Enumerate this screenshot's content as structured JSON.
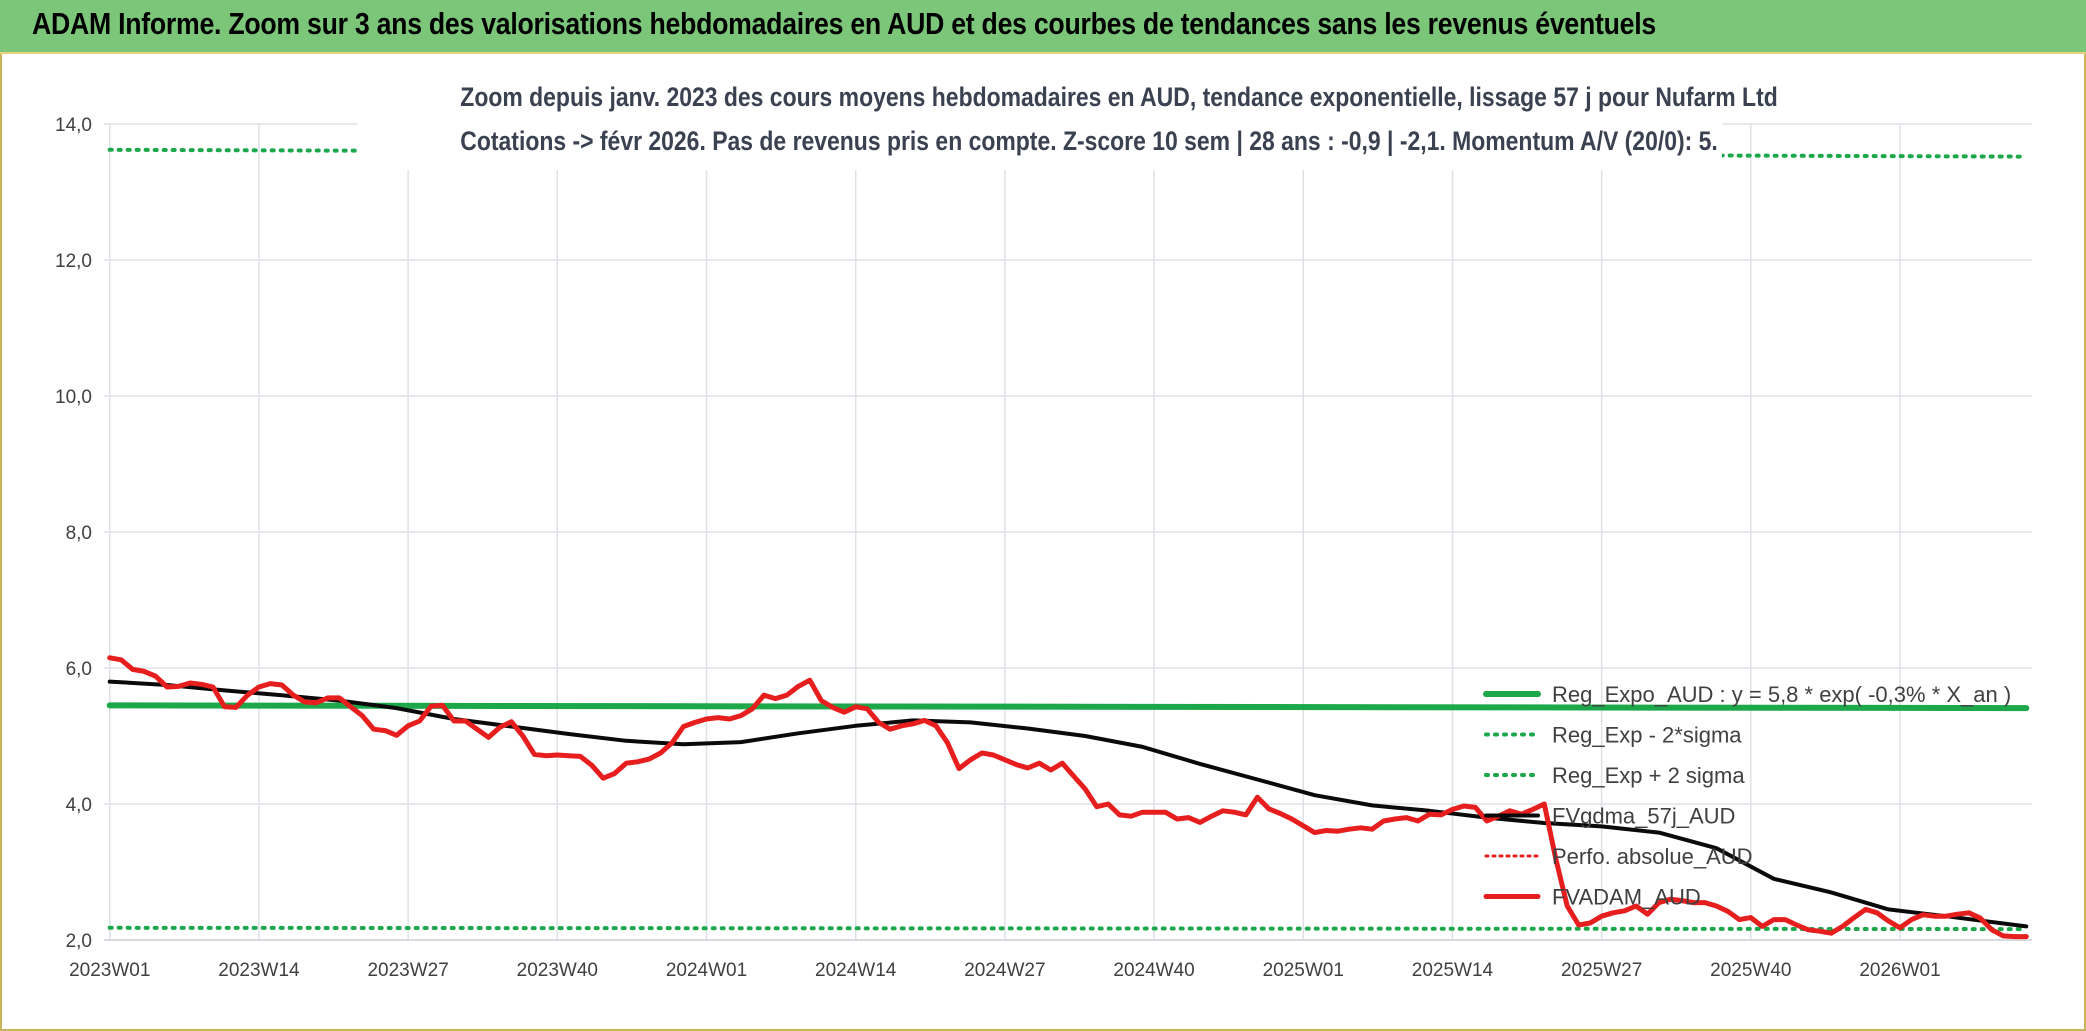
{
  "header": {
    "title": "ADAM Informe. Zoom sur 3 ans des valorisations hebdomadaires en AUD et des courbes de tendances sans les revenus éventuels"
  },
  "colors": {
    "header_bg": "#7cc67a",
    "green": "#1ca84a",
    "red": "#e61e1e",
    "black": "#0a0a0a",
    "grid": "#dde1e6",
    "text": "#404040"
  },
  "chart_data": {
    "type": "line",
    "title": [
      "Zoom depuis janv. 2023 des cours moyens hebdomadaires en AUD, tendance exponentielle, lissage 57 j pour Nufarm Ltd",
      "Cotations -> févr 2026. Pas de revenus pris en compte. Z-score 10 sem | 28 ans : -0,9 | -2,1. Momentum A/V (20/0): 5."
    ],
    "ylim": [
      2.0,
      14.0
    ],
    "yticks": [
      "2,0",
      "4,0",
      "6,0",
      "8,0",
      "10,0",
      "12,0",
      "14,0"
    ],
    "xlabels": [
      "2023W01",
      "2023W14",
      "2023W27",
      "2023W40",
      "2024W01",
      "2024W14",
      "2024W27",
      "2024W40",
      "2025W01",
      "2025W14",
      "2025W27",
      "2025W40",
      "2026W01"
    ],
    "x_week_span": 167,
    "grid": true,
    "legend_position": "bottom-right",
    "legend": [
      {
        "label": "Reg_Expo_AUD : y = 5,8 * exp( -0,3% * X_an )",
        "style": "solid-green-thick"
      },
      {
        "label": "Reg_Exp - 2*sigma",
        "style": "dotted-green"
      },
      {
        "label": "Reg_Exp + 2 sigma",
        "style": "dotted-green"
      },
      {
        "label": "FVgdma_57j_AUD",
        "style": "solid-black"
      },
      {
        "label": "Perfo. absolue_AUD",
        "style": "dotted-red"
      },
      {
        "label": "FVADAM_AUD",
        "style": "solid-red-thick"
      }
    ],
    "series": [
      {
        "name": "Reg_Expo_AUD : y = 5,8 * exp( -0,3% * X_an )",
        "x": [
          0,
          167
        ],
        "y": [
          5.45,
          5.41
        ]
      },
      {
        "name": "Reg_Exp - 2*sigma",
        "x": [
          0,
          167
        ],
        "y": [
          2.18,
          2.16
        ]
      },
      {
        "name": "Reg_Exp + 2 sigma",
        "x": [
          0,
          167
        ],
        "y": [
          13.62,
          13.52
        ]
      },
      {
        "name": "FVgdma_57j_AUD",
        "x": [
          0,
          5,
          10,
          15,
          20,
          25,
          30,
          35,
          40,
          45,
          50,
          55,
          60,
          65,
          70,
          75,
          80,
          85,
          90,
          95,
          100,
          105,
          110,
          115,
          120,
          125,
          130,
          135,
          140,
          145,
          150,
          155,
          160,
          167
        ],
        "y": [
          5.8,
          5.75,
          5.67,
          5.6,
          5.52,
          5.41,
          5.25,
          5.14,
          5.03,
          4.93,
          4.88,
          4.91,
          5.04,
          5.15,
          5.23,
          5.2,
          5.11,
          5.0,
          4.84,
          4.59,
          4.36,
          4.13,
          3.98,
          3.9,
          3.8,
          3.72,
          3.67,
          3.58,
          3.35,
          2.9,
          2.7,
          2.45,
          2.35,
          2.2
        ]
      },
      {
        "name": "Perfo. absolue_AUD",
        "x": [],
        "y": []
      },
      {
        "name": "FVADAM_AUD",
        "x": [
          0,
          1,
          2,
          3,
          4,
          5,
          6,
          7,
          8,
          9,
          10,
          11,
          12,
          13,
          14,
          15,
          16,
          17,
          18,
          19,
          20,
          21,
          22,
          23,
          24,
          25,
          26,
          27,
          28,
          29,
          30,
          31,
          32,
          33,
          34,
          35,
          36,
          37,
          38,
          39,
          40,
          41,
          42,
          43,
          44,
          45,
          46,
          47,
          48,
          49,
          50,
          51,
          52,
          53,
          54,
          55,
          56,
          57,
          58,
          59,
          60,
          61,
          62,
          63,
          64,
          65,
          66,
          67,
          68,
          69,
          70,
          71,
          72,
          73,
          74,
          75,
          76,
          77,
          78,
          79,
          80,
          81,
          82,
          83,
          84,
          85,
          86,
          87,
          88,
          89,
          90,
          91,
          92,
          93,
          94,
          95,
          96,
          97,
          98,
          99,
          100,
          101,
          102,
          103,
          104,
          105,
          106,
          107,
          108,
          109,
          110,
          111,
          112,
          113,
          114,
          115,
          116,
          117,
          118,
          119,
          120,
          121,
          122,
          123,
          124,
          125,
          126,
          127,
          128,
          129,
          130,
          131,
          132,
          133,
          134,
          135,
          136,
          137,
          138,
          139,
          140,
          141,
          142,
          143,
          144,
          145,
          146,
          147,
          148,
          149,
          150,
          151,
          152,
          153,
          154,
          155,
          156,
          157,
          158,
          159,
          160,
          161,
          162,
          163,
          164,
          165,
          166,
          167
        ],
        "y": [
          6.15,
          6.12,
          5.98,
          5.95,
          5.88,
          5.72,
          5.73,
          5.78,
          5.76,
          5.72,
          5.43,
          5.42,
          5.6,
          5.72,
          5.77,
          5.75,
          5.6,
          5.5,
          5.49,
          5.56,
          5.56,
          5.43,
          5.3,
          5.1,
          5.08,
          5.01,
          5.15,
          5.22,
          5.44,
          5.45,
          5.22,
          5.22,
          5.1,
          4.98,
          5.13,
          5.21,
          5.0,
          4.73,
          4.71,
          4.72,
          4.71,
          4.7,
          4.57,
          4.38,
          4.45,
          4.6,
          4.62,
          4.66,
          4.75,
          4.9,
          5.14,
          5.2,
          5.25,
          5.27,
          5.25,
          5.3,
          5.4,
          5.6,
          5.55,
          5.6,
          5.73,
          5.82,
          5.52,
          5.42,
          5.35,
          5.43,
          5.4,
          5.2,
          5.1,
          5.15,
          5.18,
          5.23,
          5.15,
          4.9,
          4.52,
          4.65,
          4.75,
          4.72,
          4.65,
          4.58,
          4.53,
          4.6,
          4.5,
          4.6,
          4.41,
          4.22,
          3.96,
          4.0,
          3.84,
          3.82,
          3.88,
          3.88,
          3.88,
          3.78,
          3.8,
          3.73,
          3.82,
          3.9,
          3.88,
          3.84,
          4.1,
          3.93,
          3.86,
          3.78,
          3.68,
          3.58,
          3.61,
          3.6,
          3.63,
          3.65,
          3.63,
          3.75,
          3.78,
          3.8,
          3.75,
          3.85,
          3.84,
          3.92,
          3.97,
          3.95,
          3.75,
          3.82,
          3.9,
          3.85,
          3.92,
          4.0,
          3.2,
          2.5,
          2.22,
          2.25,
          2.35,
          2.4,
          2.43,
          2.5,
          2.38,
          2.55,
          2.6,
          2.58,
          2.55,
          2.55,
          2.5,
          2.42,
          2.3,
          2.33,
          2.2,
          2.3,
          2.3,
          2.22,
          2.15,
          2.13,
          2.1,
          2.2,
          2.33,
          2.45,
          2.4,
          2.28,
          2.18,
          2.3,
          2.37,
          2.35,
          2.35,
          2.38,
          2.4,
          2.32,
          2.15,
          2.06,
          2.05,
          2.05
        ]
      }
    ]
  }
}
